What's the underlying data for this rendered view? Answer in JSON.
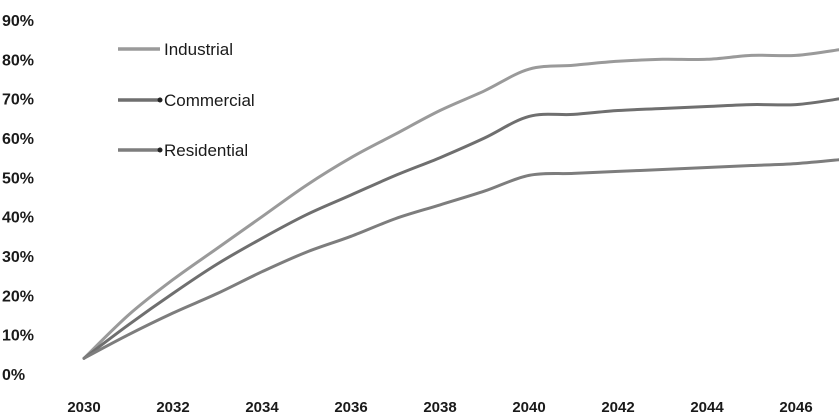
{
  "chart_data": {
    "type": "line",
    "title": "",
    "xlabel": "",
    "ylabel": "",
    "xlim": [
      2030,
      2047
    ],
    "ylim": [
      0,
      90
    ],
    "y_unit": "%",
    "grid": false,
    "legend_position": "top-left",
    "x_ticks": [
      "2030",
      "2032",
      "2034",
      "2036",
      "2038",
      "2040",
      "2042",
      "2044",
      "2046"
    ],
    "y_ticks": [
      "0%",
      "10%",
      "20%",
      "30%",
      "40%",
      "50%",
      "60%",
      "70%",
      "80%",
      "90%"
    ],
    "series": [
      {
        "name": "Industrial",
        "color": "#9a9a9a",
        "x": [
          2030,
          2031,
          2032,
          2033,
          2034,
          2035,
          2036,
          2037,
          2038,
          2039,
          2040,
          2041,
          2042,
          2043,
          2044,
          2045,
          2046,
          2047
        ],
        "y": [
          4,
          15,
          24,
          32,
          40,
          48,
          55,
          61,
          67,
          72,
          77.5,
          78.5,
          79.5,
          80,
          80,
          81,
          81,
          82.5
        ]
      },
      {
        "name": "Commercial",
        "color": "#6f6f6f",
        "x": [
          2030,
          2031,
          2032,
          2033,
          2034,
          2035,
          2036,
          2037,
          2038,
          2039,
          2040,
          2041,
          2042,
          2043,
          2044,
          2045,
          2046,
          2047
        ],
        "y": [
          4,
          12.5,
          20.5,
          28,
          34.5,
          40.5,
          45.5,
          50.5,
          55,
          60,
          65.5,
          66,
          67,
          67.5,
          68,
          68.5,
          68.5,
          70
        ]
      },
      {
        "name": "Residential",
        "color": "#7d7d7d",
        "x": [
          2030,
          2031,
          2032,
          2033,
          2034,
          2035,
          2036,
          2037,
          2038,
          2039,
          2040,
          2041,
          2042,
          2043,
          2044,
          2045,
          2046,
          2047
        ],
        "y": [
          4,
          10,
          15.5,
          20.5,
          26,
          31,
          35,
          39.5,
          43,
          46.5,
          50.5,
          51,
          51.5,
          52,
          52.5,
          53,
          53.5,
          54.5
        ]
      }
    ]
  }
}
